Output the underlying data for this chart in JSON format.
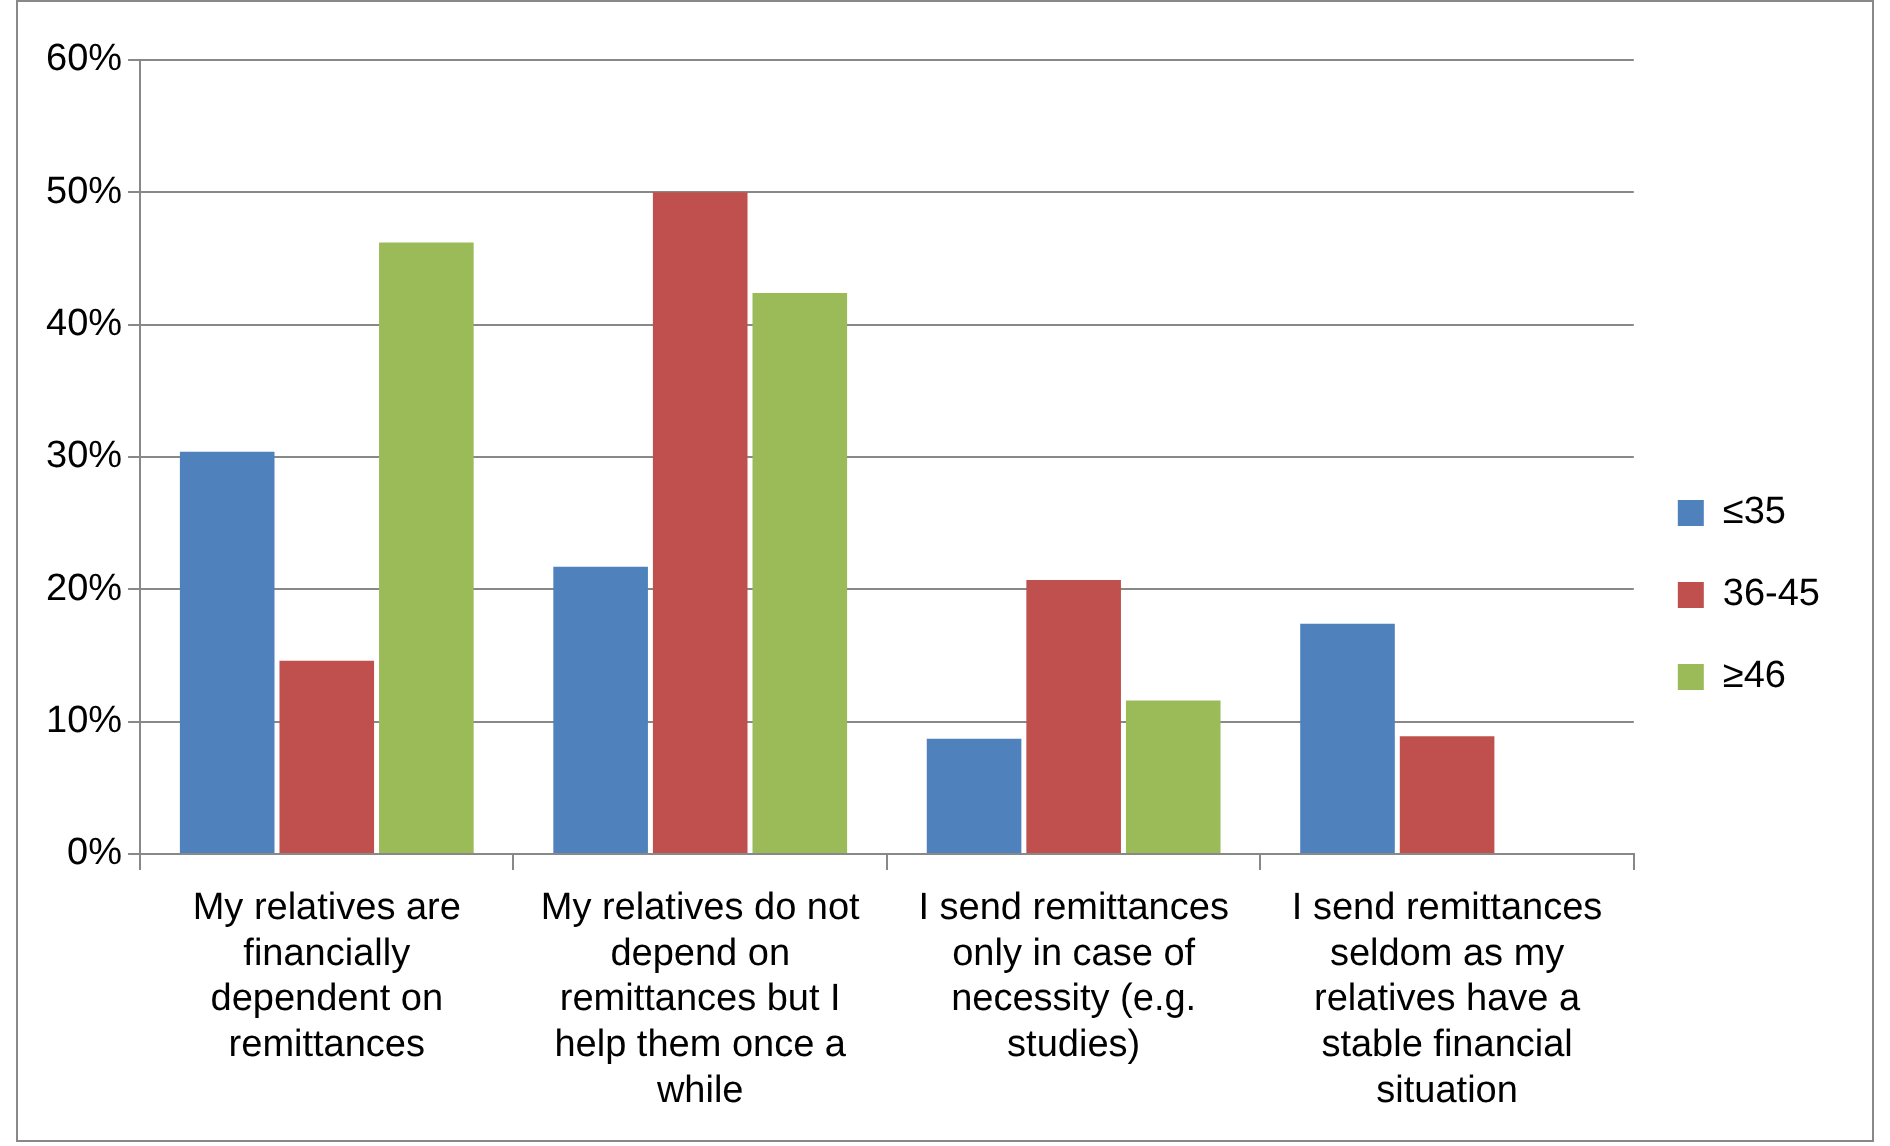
{
  "chart_data": {
    "type": "bar",
    "categories": [
      "My relatives are financially dependent on remittances",
      "My relatives do not depend on remittances but I help them once a while",
      "I send remittances only in case of necessity (e.g. studies)",
      "I send remittances seldom as my relatives have a stable financial situation"
    ],
    "series": [
      {
        "name": "≤35",
        "color": "#4f81bd",
        "values": [
          30.4,
          21.7,
          8.7,
          17.4
        ]
      },
      {
        "name": "36-45",
        "color": "#c0504d",
        "values": [
          14.6,
          50,
          20.7,
          8.9
        ]
      },
      {
        "name": "≥46",
        "color": "#9bbb59",
        "values": [
          46.2,
          42.4,
          11.6,
          0
        ]
      }
    ],
    "ylim": [
      0,
      60
    ],
    "yticks": [
      {
        "value": 0,
        "label": "0%"
      },
      {
        "value": 10,
        "label": "10%"
      },
      {
        "value": 20,
        "label": "20%"
      },
      {
        "value": 30,
        "label": "30%"
      },
      {
        "value": 40,
        "label": "40%"
      },
      {
        "value": 50,
        "label": "50%"
      },
      {
        "value": 60,
        "label": "60%"
      }
    ],
    "grid": "y",
    "legend": "right"
  }
}
